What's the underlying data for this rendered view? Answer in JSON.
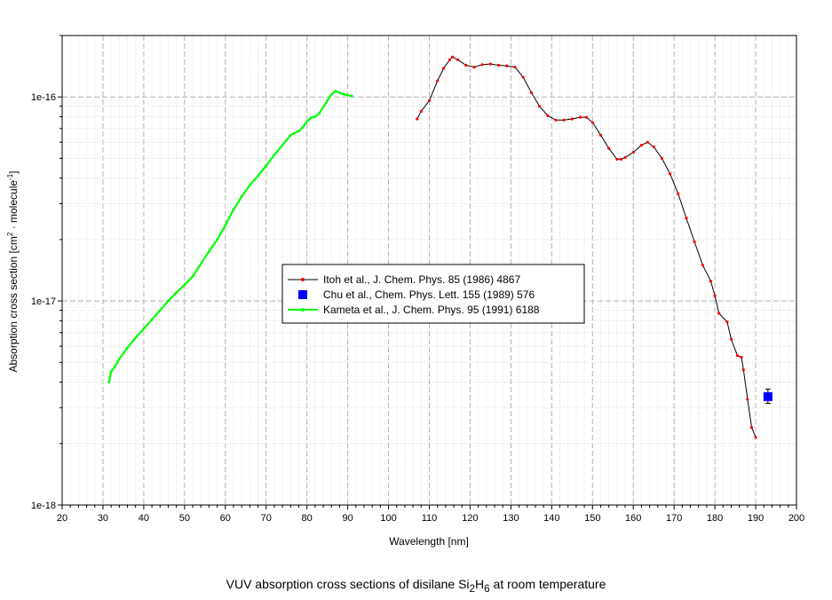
{
  "chart_data": {
    "type": "line",
    "xlabel": "Wavelength [nm]",
    "ylabel": {
      "prefix": "Absorption cross section [cm",
      "sup1": "2",
      "middle": " · molecule",
      "sup2": "-1",
      "suffix": "]"
    },
    "xlim": [
      20,
      200
    ],
    "xticks": [
      20,
      30,
      40,
      50,
      60,
      70,
      80,
      90,
      100,
      110,
      120,
      130,
      140,
      150,
      160,
      170,
      180,
      190,
      200
    ],
    "yscale": "log",
    "ylim": [
      1e-18,
      2e-16
    ],
    "yticks": [
      {
        "value": 1e-18,
        "label": "1e-18"
      },
      {
        "value": 1e-17,
        "label": "1e-17"
      },
      {
        "value": 1e-16,
        "label": "1e-16"
      }
    ],
    "grid": true,
    "legend_position": "center",
    "series": [
      {
        "name": "Itoh et al., J. Chem. Phys. 85 (1986) 4867",
        "color": "#ff0000",
        "line_color": "#000000",
        "marker": "dot",
        "x": [
          107,
          108,
          110,
          112,
          113.5,
          115,
          115.7,
          117,
          119,
          121,
          123,
          125,
          127,
          129,
          131,
          133,
          135,
          137,
          139,
          141,
          143,
          145,
          147,
          148.5,
          150,
          152,
          154,
          156,
          157,
          158,
          160,
          162,
          163.5,
          165,
          167,
          169,
          171,
          173,
          175,
          177,
          179,
          180,
          181,
          183,
          184,
          185.5,
          186.5,
          187,
          188,
          189,
          190
        ],
        "y": [
          7.8e-17,
          8.5e-17,
          9.6e-17,
          1.2e-16,
          1.38e-16,
          1.52e-16,
          1.57e-16,
          1.52e-16,
          1.43e-16,
          1.4e-16,
          1.44e-16,
          1.45e-16,
          1.43e-16,
          1.42e-16,
          1.4e-16,
          1.25e-16,
          1.05e-16,
          9e-17,
          8.1e-17,
          7.7e-17,
          7.7e-17,
          7.8e-17,
          7.95e-17,
          7.95e-17,
          7.5e-17,
          6.5e-17,
          5.6e-17,
          4.95e-17,
          4.95e-17,
          5.05e-17,
          5.35e-17,
          5.8e-17,
          6e-17,
          5.7e-17,
          5e-17,
          4.2e-17,
          3.35e-17,
          2.55e-17,
          1.95e-17,
          1.5e-17,
          1.25e-17,
          1.06e-17,
          8.7e-18,
          7.9e-18,
          6.5e-18,
          5.4e-18,
          5.3e-18,
          4.6e-18,
          3.3e-18,
          2.4e-18,
          2.15e-18
        ]
      },
      {
        "name": "Chu et al., Chem. Phys. Lett. 155 (1989) 576",
        "color": "#0000ff",
        "marker": "square",
        "x": [
          193
        ],
        "y": [
          3.4e-18
        ],
        "yerr_low": [
          3.15e-18
        ],
        "yerr_high": [
          3.7e-18
        ]
      },
      {
        "name": "Kameta et al., J. Chem. Phys. 95 (1991) 6188",
        "color": "#00ff00",
        "marker": "dot",
        "x": [
          31.5,
          32,
          33,
          34,
          36,
          38,
          40,
          42,
          44,
          46,
          48,
          50,
          52,
          54,
          56,
          58,
          60,
          62,
          64,
          66,
          68,
          70,
          72,
          74,
          76,
          78,
          79,
          80,
          81,
          82,
          83,
          84,
          85,
          86,
          87,
          88,
          89,
          90,
          91
        ],
        "y": [
          4e-18,
          4.5e-18,
          4.8e-18,
          5.2e-18,
          5.9e-18,
          6.6e-18,
          7.3e-18,
          8.1e-18,
          9e-18,
          1e-17,
          1.1e-17,
          1.2e-17,
          1.32e-17,
          1.52e-17,
          1.75e-17,
          2e-17,
          2.35e-17,
          2.8e-17,
          3.25e-17,
          3.7e-17,
          4.1e-17,
          4.6e-17,
          5.2e-17,
          5.8e-17,
          6.5e-17,
          6.8e-17,
          7.1e-17,
          7.6e-17,
          7.9e-17,
          8e-17,
          8.3e-17,
          8.9e-17,
          9.6e-17,
          1.03e-16,
          1.07e-16,
          1.05e-16,
          1.03e-16,
          1.02e-16,
          1.01e-16
        ]
      }
    ]
  },
  "caption": {
    "prefix": "VUV absorption cross sections  of disilane Si",
    "sub1": "2",
    "mid": "H",
    "sub2": "6",
    "suffix": " at room temperature"
  }
}
